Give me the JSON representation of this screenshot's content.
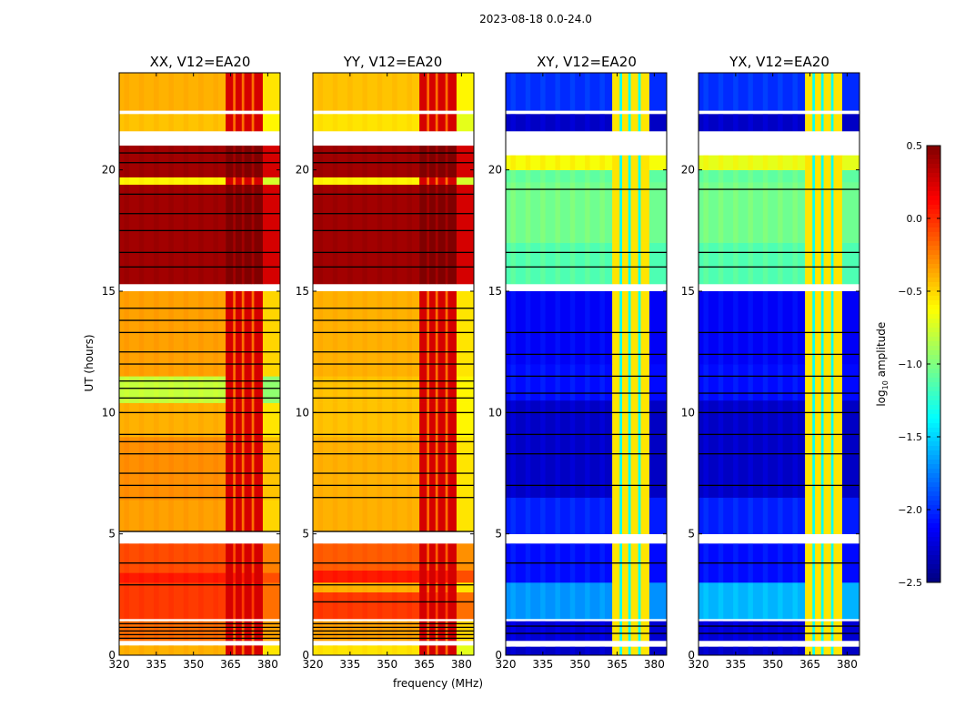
{
  "chart_data": {
    "type": "heatmap",
    "title": "2023-08-18 0.0-24.0",
    "xlabel": "frequency (MHz)",
    "ylabel": "UT (hours)",
    "xlim": [
      320,
      385
    ],
    "ylim": [
      0,
      24
    ],
    "xticks": [
      "320",
      "335",
      "350",
      "365",
      "380"
    ],
    "xtick_values": [
      320,
      335,
      350,
      365,
      380
    ],
    "yticks": [
      "0",
      "5",
      "10",
      "15",
      "20"
    ],
    "ytick_values": [
      0,
      5,
      10,
      15,
      20
    ],
    "colormap": "jet",
    "colorbar": {
      "label": "log10 amplitude",
      "label_main": "log",
      "label_sub": "10",
      "label_rest": " amplitude",
      "range": [
        -2.5,
        0.5
      ],
      "ticks": [
        "0.5",
        "0.0",
        "−0.5",
        "−1.0",
        "−1.5",
        "−2.0",
        "−2.5"
      ],
      "tick_values": [
        0.5,
        0.0,
        -0.5,
        -1.0,
        -1.5,
        -2.0,
        -2.5
      ]
    },
    "freq_bands": [
      {
        "f": [
          320,
          363
        ],
        "kind": "base"
      },
      {
        "f": [
          363,
          366
        ],
        "kind": "rfi"
      },
      {
        "f": [
          366,
          367
        ],
        "kind": "gap"
      },
      {
        "f": [
          367,
          369.5
        ],
        "kind": "rfi"
      },
      {
        "f": [
          369.5,
          370.5
        ],
        "kind": "gap"
      },
      {
        "f": [
          370.5,
          373.5
        ],
        "kind": "rfi"
      },
      {
        "f": [
          373.5,
          374.5
        ],
        "kind": "gap"
      },
      {
        "f": [
          374.5,
          378
        ],
        "kind": "rfi"
      },
      {
        "f": [
          378,
          385
        ],
        "kind": "base"
      }
    ],
    "panels": [
      {
        "title": "XX, V12=EA20",
        "rfi": 0.1,
        "gap": -0.2,
        "segments": [
          [
            0,
            0.4,
            -0.4
          ],
          [
            0.4,
            0.6,
            null
          ],
          [
            0.6,
            1.4,
            -0.2
          ],
          [
            1.4,
            1.5,
            null
          ],
          [
            1.5,
            3.0,
            -0.05
          ],
          [
            3.0,
            3.4,
            0.05
          ],
          [
            3.4,
            4.6,
            -0.1
          ],
          [
            4.6,
            5.1,
            null
          ],
          [
            5.1,
            6.4,
            -0.35
          ],
          [
            6.4,
            9.0,
            -0.3
          ],
          [
            9.0,
            10.4,
            -0.4
          ],
          [
            10.4,
            11.5,
            -0.8
          ],
          [
            11.5,
            15.0,
            -0.35
          ],
          [
            15.0,
            15.3,
            null
          ],
          [
            15.3,
            19.4,
            0.4
          ],
          [
            19.4,
            19.7,
            -0.6
          ],
          [
            19.7,
            21.0,
            0.4
          ],
          [
            21.0,
            21.6,
            null
          ],
          [
            21.6,
            22.3,
            -0.45
          ],
          [
            22.3,
            22.45,
            null
          ],
          [
            22.45,
            24,
            -0.4
          ]
        ],
        "black_lines": [
          0.7,
          0.85,
          1.0,
          1.15,
          1.3,
          2.9,
          3.8,
          5.1,
          6.5,
          7.0,
          7.5,
          8.3,
          8.8,
          9.1,
          10.0,
          10.6,
          11.0,
          11.3,
          12.0,
          12.5,
          13.3,
          13.8,
          14.3,
          16.0,
          16.6,
          17.5,
          18.2,
          19.0,
          20.3,
          20.7
        ]
      },
      {
        "title": "YY, V12=EA20",
        "rfi": 0.1,
        "gap": -0.2,
        "segments": [
          [
            0,
            0.4,
            -0.55
          ],
          [
            0.4,
            0.6,
            null
          ],
          [
            0.6,
            1.4,
            -0.35
          ],
          [
            1.4,
            1.5,
            null
          ],
          [
            1.5,
            2.6,
            -0.05
          ],
          [
            2.6,
            3.0,
            -0.4
          ],
          [
            3.0,
            3.5,
            0.05
          ],
          [
            3.5,
            4.6,
            -0.15
          ],
          [
            4.6,
            5.1,
            null
          ],
          [
            5.1,
            6.4,
            -0.4
          ],
          [
            6.4,
            9.0,
            -0.4
          ],
          [
            9.0,
            10.4,
            -0.45
          ],
          [
            10.4,
            11.5,
            -0.45
          ],
          [
            11.5,
            15.0,
            -0.4
          ],
          [
            15.0,
            15.3,
            null
          ],
          [
            15.3,
            19.4,
            0.4
          ],
          [
            19.4,
            19.7,
            -0.6
          ],
          [
            19.7,
            21.0,
            0.4
          ],
          [
            21.0,
            21.6,
            null
          ],
          [
            21.6,
            22.3,
            -0.55
          ],
          [
            22.3,
            22.45,
            null
          ],
          [
            22.45,
            24,
            -0.45
          ]
        ],
        "black_lines": [
          0.7,
          0.85,
          1.0,
          1.15,
          1.3,
          2.2,
          2.9,
          3.8,
          5.1,
          6.5,
          7.0,
          7.5,
          8.3,
          8.8,
          9.1,
          10.0,
          10.6,
          11.0,
          11.3,
          12.0,
          12.5,
          13.3,
          13.8,
          14.3,
          16.0,
          16.6,
          17.5,
          18.2,
          19.0,
          20.3,
          20.7
        ]
      },
      {
        "title": "XY, V12=EA20",
        "rfi": -0.55,
        "gap": -1.35,
        "segments": [
          [
            0,
            0.35,
            -2.3
          ],
          [
            0.35,
            0.6,
            null
          ],
          [
            0.6,
            1.4,
            -2.25
          ],
          [
            1.4,
            1.5,
            null
          ],
          [
            1.5,
            3.0,
            -1.7
          ],
          [
            3.0,
            4.6,
            -2.1
          ],
          [
            4.6,
            5.0,
            null
          ],
          [
            5.0,
            6.5,
            -2.05
          ],
          [
            6.5,
            10.5,
            -2.3
          ],
          [
            10.5,
            12.0,
            -2.1
          ],
          [
            12.0,
            15.0,
            -2.15
          ],
          [
            15.0,
            15.3,
            null
          ],
          [
            15.3,
            17.0,
            -1.15
          ],
          [
            17.0,
            19.5,
            -1.05
          ],
          [
            19.5,
            20.0,
            -1.1
          ],
          [
            20.0,
            20.6,
            -0.65
          ],
          [
            20.6,
            21.6,
            null
          ],
          [
            21.6,
            22.3,
            -2.3
          ],
          [
            22.3,
            22.45,
            null
          ],
          [
            22.45,
            24,
            -2.0
          ]
        ],
        "black_lines": [
          0.9,
          1.2,
          3.8,
          7.0,
          8.3,
          9.1,
          10.0,
          10.8,
          11.5,
          12.4,
          13.3,
          16.0,
          16.6,
          19.2
        ]
      },
      {
        "title": "YX, V12=EA20",
        "rfi": -0.55,
        "gap": -1.35,
        "segments": [
          [
            0,
            0.35,
            -2.3
          ],
          [
            0.35,
            0.6,
            null
          ],
          [
            0.6,
            1.4,
            -2.25
          ],
          [
            1.4,
            1.5,
            null
          ],
          [
            1.5,
            3.0,
            -1.6
          ],
          [
            3.0,
            4.6,
            -2.1
          ],
          [
            4.6,
            5.0,
            null
          ],
          [
            5.0,
            6.5,
            -2.05
          ],
          [
            6.5,
            10.5,
            -2.3
          ],
          [
            10.5,
            12.0,
            -2.1
          ],
          [
            12.0,
            15.0,
            -2.15
          ],
          [
            15.0,
            15.3,
            null
          ],
          [
            15.3,
            17.0,
            -1.15
          ],
          [
            17.0,
            19.5,
            -1.05
          ],
          [
            19.5,
            20.0,
            -1.1
          ],
          [
            20.0,
            20.6,
            -0.7
          ],
          [
            20.6,
            21.6,
            null
          ],
          [
            21.6,
            22.3,
            -2.3
          ],
          [
            22.3,
            22.45,
            null
          ],
          [
            22.45,
            24,
            -2.0
          ]
        ],
        "black_lines": [
          0.9,
          1.2,
          3.8,
          7.0,
          8.3,
          9.1,
          10.0,
          10.8,
          11.5,
          12.4,
          13.3,
          16.0,
          16.6,
          19.2
        ]
      }
    ]
  }
}
